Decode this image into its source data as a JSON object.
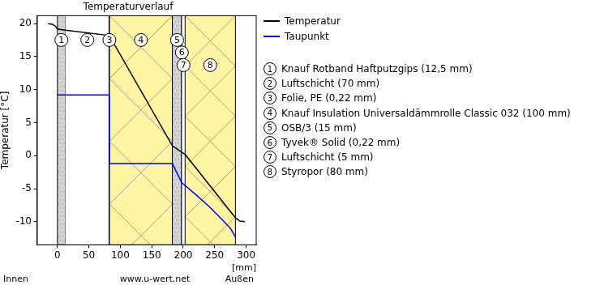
{
  "chart_data": {
    "type": "line",
    "title": "Temperaturverlauf",
    "ylabel": "Temperatur [°C]",
    "xlabel": "[mm]",
    "annotations": [
      "Innen",
      "www.u-wert.net",
      "Außen"
    ],
    "xlim": [
      -32,
      316
    ],
    "xticks": [
      0,
      50,
      100,
      150,
      200,
      250,
      300
    ],
    "ylim": [
      -13.5,
      21.2
    ],
    "yticks": [
      -10,
      -5,
      0,
      5,
      10,
      15,
      20
    ],
    "grid": false,
    "legend": "right",
    "series": [
      {
        "name": "Temperatur",
        "color": "#000000",
        "line_style": "solid",
        "x": [
          -15,
          -8,
          -3,
          0,
          12.5,
          82.5,
          182.72,
          197.72,
          202.94,
          282.94,
          290,
          298
        ],
        "values": [
          20,
          19.9,
          19.6,
          19.2,
          19.0,
          18.2,
          1.5,
          0.5,
          0.2,
          -9.4,
          -9.9,
          -10
        ]
      },
      {
        "name": "Taupunkt",
        "color": "#0000ff",
        "line_style": "solid",
        "x": [
          0,
          82.5,
          82.72,
          182.72,
          197.72,
          202.94,
          220,
          240,
          260,
          275,
          282.94
        ],
        "values": [
          9.2,
          9.2,
          -1.2,
          -1.2,
          -4.1,
          -4.5,
          -5.9,
          -7.6,
          -9.5,
          -11,
          -12.3
        ]
      }
    ],
    "layers": [
      {
        "number": 1,
        "name": "Knauf Rotband Haftputzgips (12,5 mm)",
        "from": 0,
        "to": 12.5,
        "color": "#d3d3d3",
        "line_style": "dots"
      },
      {
        "number": 2,
        "name": "Luftschicht (70 mm)",
        "from": 12.5,
        "to": 82.5,
        "color": "#ffffff",
        "line_style": "none"
      },
      {
        "number": 3,
        "name": "Folie, PE (0,22 mm)",
        "from": 82.5,
        "to": 82.72,
        "color": "#000000",
        "line_style": "none"
      },
      {
        "number": 4,
        "name": "Knauf Insulation Universaldämmrolle Classic 032 (100 mm)",
        "from": 82.72,
        "to": 182.72,
        "color": "#fff5a3",
        "line_style": "cross"
      },
      {
        "number": 5,
        "name": "OSB/3 (15 mm)",
        "from": 182.72,
        "to": 197.72,
        "color": "#d3d3d3",
        "line_style": "dots"
      },
      {
        "number": 6,
        "name": "Tyvek® Solid (0,22 mm)",
        "from": 197.72,
        "to": 197.94,
        "color": "#000000",
        "line_style": "none"
      },
      {
        "number": 7,
        "name": "Luftschicht (5 mm)",
        "from": 197.94,
        "to": 202.94,
        "color": "#ffffff",
        "line_style": "none"
      },
      {
        "number": 8,
        "name": "Styropor (80 mm)",
        "from": 202.94,
        "to": 282.94,
        "color": "#fff5a3",
        "line_style": "cross"
      }
    ]
  }
}
